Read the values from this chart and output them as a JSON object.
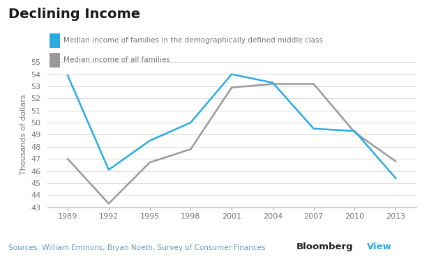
{
  "title": "Declining Income",
  "ylabel": "Thousands of dollars",
  "source_text": "Sources: William Emmons, Bryan Noeth, Survey of Consumer Finances",
  "bloomberg_text": "Bloomberg",
  "bloomberg_view_text": "View",
  "years": [
    1989,
    1992,
    1995,
    1998,
    2001,
    2004,
    2007,
    2010,
    2013
  ],
  "middle_class": [
    53.9,
    46.1,
    48.5,
    50.0,
    54.0,
    53.3,
    49.5,
    49.3,
    45.4
  ],
  "all_families": [
    47.0,
    43.3,
    46.7,
    47.8,
    52.9,
    53.2,
    53.2,
    49.2,
    46.8
  ],
  "middle_class_color": "#29ABE2",
  "all_families_color": "#999999",
  "middle_class_label": "Median income of families in the demographically defined middle class",
  "all_families_label": "Median income of all families",
  "ylim": [
    43,
    55
  ],
  "yticks": [
    43,
    44,
    45,
    46,
    47,
    48,
    49,
    50,
    51,
    52,
    53,
    54,
    55
  ],
  "bg_color": "#ffffff",
  "grid_color": "#dddddd",
  "title_fontsize": 14,
  "label_fontsize": 8,
  "tick_fontsize": 8,
  "source_color": "#6699BB",
  "bloomberg_color": "#222222",
  "view_color": "#29ABE2"
}
